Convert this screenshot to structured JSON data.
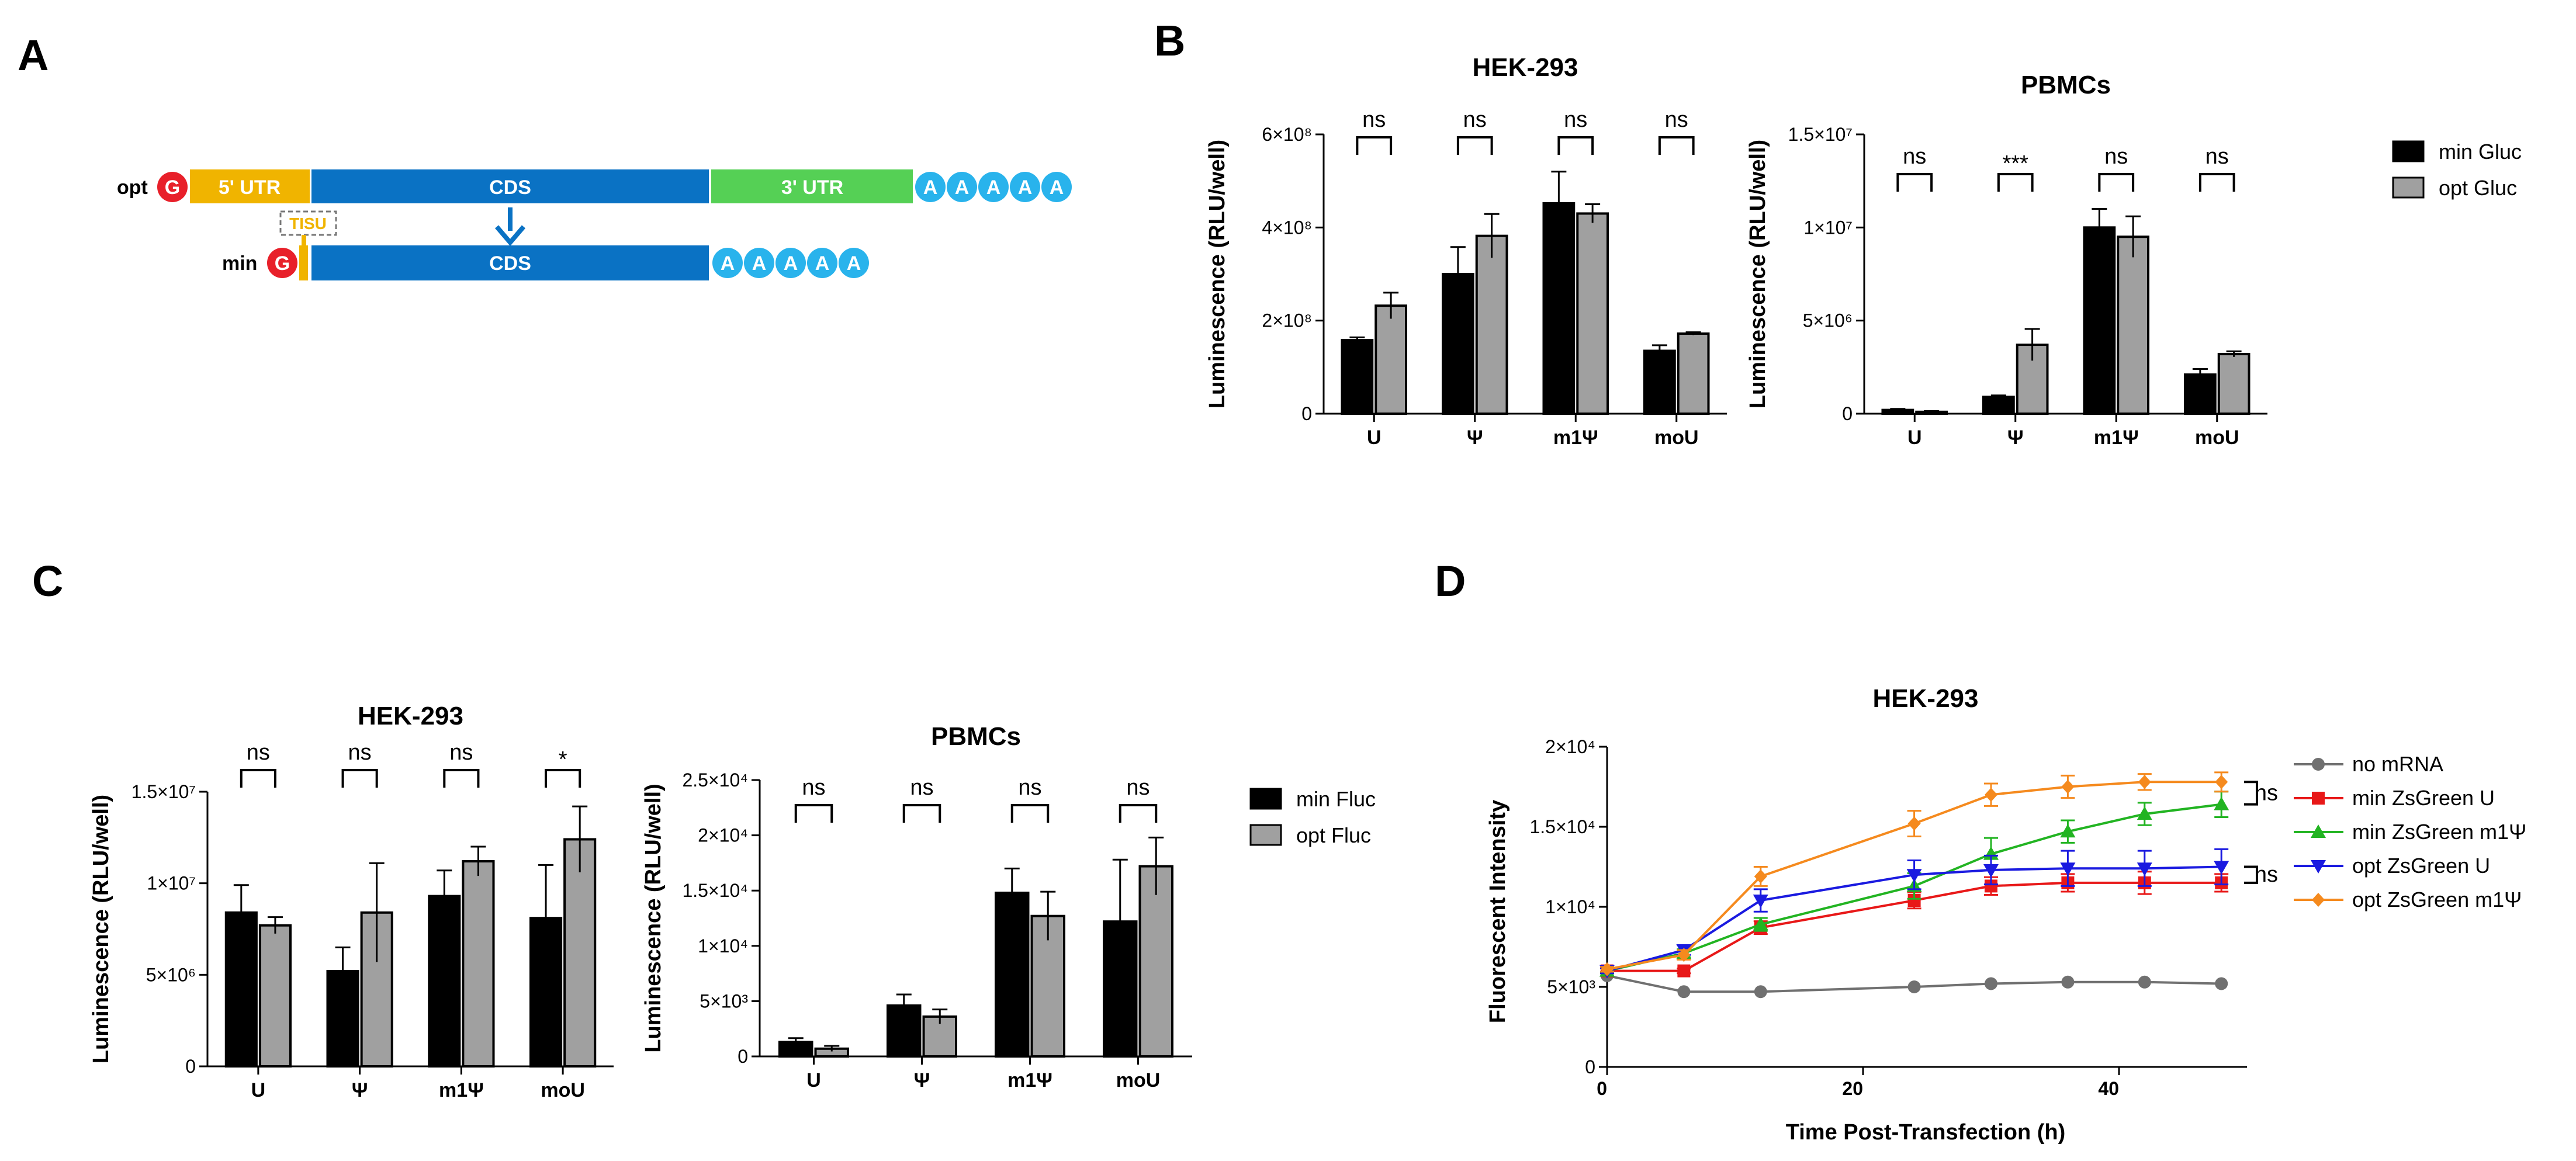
{
  "panel_labels": [
    "A",
    "B",
    "C",
    "D"
  ],
  "diagram": {
    "opt_label": "opt",
    "min_label": "min",
    "cap": "G",
    "utr5": "5' UTR",
    "cds": "CDS",
    "utr3": "3' UTR",
    "tisu": "TISU",
    "polyA": [
      "A",
      "A",
      "A",
      "A",
      "A"
    ],
    "colors": {
      "cap": "#e8202a",
      "utr5": "#f0b400",
      "cds": "#0a72c4",
      "utr3": "#55d055",
      "polyA": "#29b3ec",
      "arrow": "#0a72c4"
    }
  },
  "chart_data": [
    {
      "id": "B1",
      "type": "bar",
      "title": "HEK-293",
      "ylabel": "Luminescence (RLU/well)",
      "xlabel": "",
      "categories": [
        "U",
        "Ψ",
        "m1Ψ",
        "moU"
      ],
      "ylim": [
        0,
        600000000
      ],
      "yticks": [
        0,
        200000000,
        400000000,
        600000000
      ],
      "ytick_labels": [
        "0",
        "2×10⁸",
        "4×10⁸",
        "6×10⁸"
      ],
      "series": [
        {
          "name": "min Gluc",
          "color": "#000000",
          "values": [
            158000000,
            300000000,
            452000000,
            135000000
          ],
          "errors": [
            6000000,
            58000000,
            68000000,
            12000000
          ]
        },
        {
          "name": "opt Gluc",
          "color": "#a0a0a0",
          "values": [
            232000000,
            382000000,
            430000000,
            172000000
          ],
          "errors": [
            28000000,
            47000000,
            20000000,
            3000000
          ]
        }
      ],
      "significance": [
        "ns",
        "ns",
        "ns",
        "ns"
      ]
    },
    {
      "id": "B2",
      "type": "bar",
      "title": "PBMCs",
      "ylabel": "Luminescence (RLU/well)",
      "xlabel": "",
      "categories": [
        "U",
        "Ψ",
        "m1Ψ",
        "moU"
      ],
      "ylim": [
        0,
        15000000
      ],
      "yticks": [
        0,
        5000000,
        10000000,
        15000000
      ],
      "ytick_labels": [
        "0",
        "5×10⁶",
        "1×10⁷",
        "1.5×10⁷"
      ],
      "series": [
        {
          "name": "min Gluc",
          "color": "#000000",
          "values": [
            200000,
            900000,
            10000000,
            2100000
          ],
          "errors": [
            60000,
            80000,
            1000000,
            300000
          ]
        },
        {
          "name": "opt Gluc",
          "color": "#a0a0a0",
          "values": [
            100000,
            3700000,
            9500000,
            3200000
          ],
          "errors": [
            40000,
            850000,
            1100000,
            150000
          ]
        }
      ],
      "significance": [
        "ns",
        "***",
        "ns",
        "ns"
      ]
    },
    {
      "id": "C1",
      "type": "bar",
      "title": "HEK-293",
      "ylabel": "Luminescence (RLU/well)",
      "xlabel": "",
      "categories": [
        "U",
        "Ψ",
        "m1Ψ",
        "moU"
      ],
      "ylim": [
        0,
        15000000
      ],
      "yticks": [
        0,
        5000000,
        10000000,
        15000000
      ],
      "ytick_labels": [
        "0",
        "5×10⁶",
        "1×10⁷",
        "1.5×10⁷"
      ],
      "series": [
        {
          "name": "min Fluc",
          "color": "#000000",
          "values": [
            8400000,
            5200000,
            9300000,
            8100000
          ],
          "errors": [
            1500000,
            1300000,
            1400000,
            2900000
          ]
        },
        {
          "name": "opt Fluc",
          "color": "#a0a0a0",
          "values": [
            7700000,
            8400000,
            11200000,
            12400000
          ],
          "errors": [
            450000,
            2700000,
            800000,
            1800000
          ]
        }
      ],
      "significance": [
        "ns",
        "ns",
        "ns",
        "*"
      ]
    },
    {
      "id": "C2",
      "type": "bar",
      "title": "PBMCs",
      "ylabel": "Luminescence (RLU/well)",
      "xlabel": "",
      "categories": [
        "U",
        "Ψ",
        "m1Ψ",
        "moU"
      ],
      "ylim": [
        0,
        25000
      ],
      "yticks": [
        0,
        5000,
        10000,
        15000,
        20000,
        25000
      ],
      "ytick_labels": [
        "0",
        "5×10³",
        "1×10⁴",
        "1.5×10⁴",
        "2×10⁴",
        "2.5×10⁴"
      ],
      "series": [
        {
          "name": "min Fluc",
          "color": "#000000",
          "values": [
            1300,
            4600,
            14800,
            12200
          ],
          "errors": [
            350,
            1000,
            2200,
            5600
          ]
        },
        {
          "name": "opt Fluc",
          "color": "#a0a0a0",
          "values": [
            700,
            3600,
            12700,
            17200
          ],
          "errors": [
            250,
            650,
            2200,
            2600
          ]
        }
      ],
      "significance": [
        "ns",
        "ns",
        "ns",
        "ns"
      ]
    },
    {
      "id": "D",
      "type": "line",
      "title": "HEK-293",
      "xlabel": "Time Post-Transfection (h)",
      "ylabel": "Fluorescent Intensity",
      "xlim": [
        0,
        50
      ],
      "ylim": [
        0,
        20000
      ],
      "xticks": [
        0,
        20,
        40
      ],
      "xtick_labels": [
        "0",
        "20",
        "40"
      ],
      "yticks": [
        0,
        5000,
        10000,
        15000,
        20000
      ],
      "ytick_labels": [
        "0",
        "5×10³",
        "1×10⁴",
        "1.5×10⁴",
        "2×10⁴"
      ],
      "x": [
        0,
        6,
        12,
        24,
        30,
        36,
        42,
        48
      ],
      "series": [
        {
          "name": "no mRNA",
          "color": "#707070",
          "marker": "circle",
          "values": [
            5700,
            4700,
            4700,
            5000,
            5200,
            5300,
            5300,
            5200
          ],
          "errors": [
            0,
            0,
            0,
            0,
            0,
            0,
            0,
            0
          ]
        },
        {
          "name": "min ZsGreen U",
          "color": "#e81818",
          "marker": "square",
          "values": [
            6000,
            6000,
            8700,
            10400,
            11300,
            11500,
            11500,
            11500
          ],
          "errors": [
            150,
            150,
            400,
            500,
            550,
            550,
            700,
            550
          ]
        },
        {
          "name": "min ZsGreen m1Ψ",
          "color": "#22b422",
          "marker": "triangle-up",
          "values": [
            6000,
            7100,
            8900,
            11300,
            13300,
            14700,
            15800,
            16400
          ],
          "errors": [
            150,
            250,
            400,
            800,
            1000,
            700,
            700,
            800
          ]
        },
        {
          "name": "opt ZsGreen U",
          "color": "#1a1ae0",
          "marker": "triangle-down",
          "values": [
            6000,
            7300,
            10400,
            12000,
            12300,
            12400,
            12400,
            12500
          ],
          "errors": [
            150,
            300,
            700,
            900,
            900,
            1100,
            1100,
            1100
          ]
        },
        {
          "name": "opt ZsGreen m1Ψ",
          "color": "#f58a1e",
          "marker": "diamond",
          "values": [
            6100,
            7000,
            11900,
            15200,
            17000,
            17500,
            17800,
            17800
          ],
          "errors": [
            150,
            300,
            600,
            800,
            700,
            700,
            500,
            600
          ]
        }
      ],
      "significance": [
        "ns",
        "ns"
      ]
    }
  ]
}
